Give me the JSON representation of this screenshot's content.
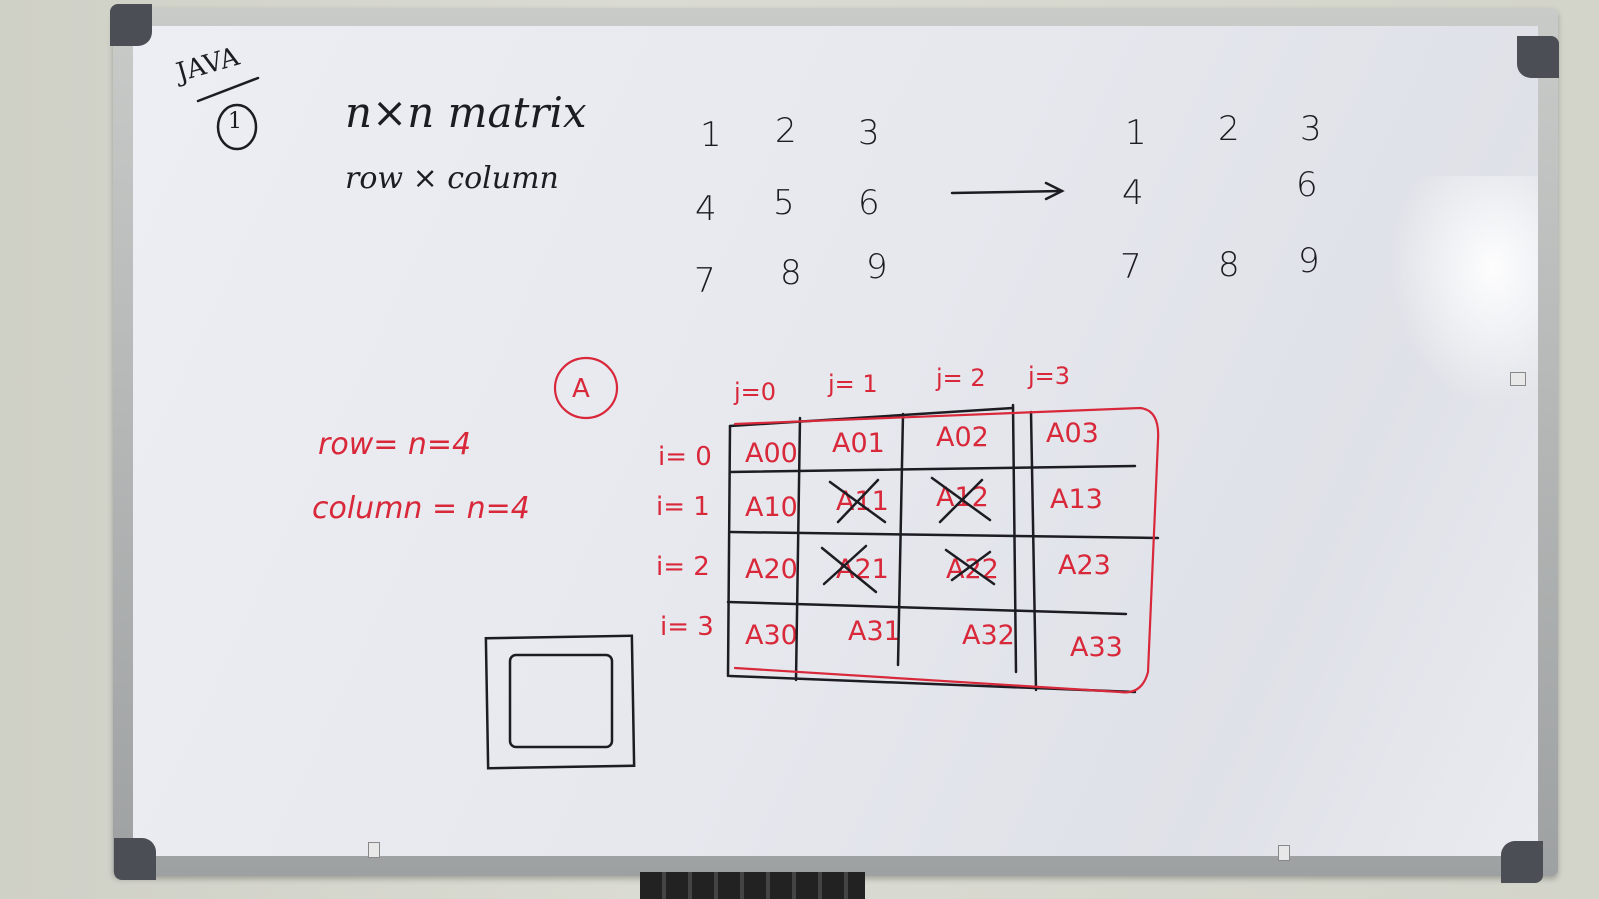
{
  "board": {
    "language": "JAVA",
    "step_number": "1",
    "heading": "n×n matrix",
    "subheading": "row × column"
  },
  "left_matrix": [
    [
      "1",
      "2",
      "3"
    ],
    [
      "4",
      "5",
      "6"
    ],
    [
      "7",
      "8",
      "9"
    ]
  ],
  "right_matrix": [
    [
      "1",
      "2",
      "3"
    ],
    [
      "4",
      "",
      "6"
    ],
    [
      "7",
      "8",
      "9"
    ]
  ],
  "array_label": "A",
  "dimensions": {
    "rows": "row= n=4",
    "columns": "column = n=4"
  },
  "column_indices": [
    "j=0",
    "j= 1",
    "j= 2",
    "j=3"
  ],
  "row_indices": [
    "i= 0",
    "i= 1",
    "i= 2",
    "i= 3"
  ],
  "grid": [
    [
      "A00",
      "A01",
      "A02",
      "A03"
    ],
    [
      "A10",
      "A11",
      "A12",
      "A13"
    ],
    [
      "A20",
      "A21",
      "A22",
      "A23"
    ],
    [
      "A30",
      "A31",
      "A32",
      "A33"
    ]
  ],
  "crossed_cells": [
    "A11",
    "A12",
    "A21",
    "A22"
  ],
  "colors": {
    "marker_black": "#1c1c22",
    "marker_red": "#d8283a"
  }
}
